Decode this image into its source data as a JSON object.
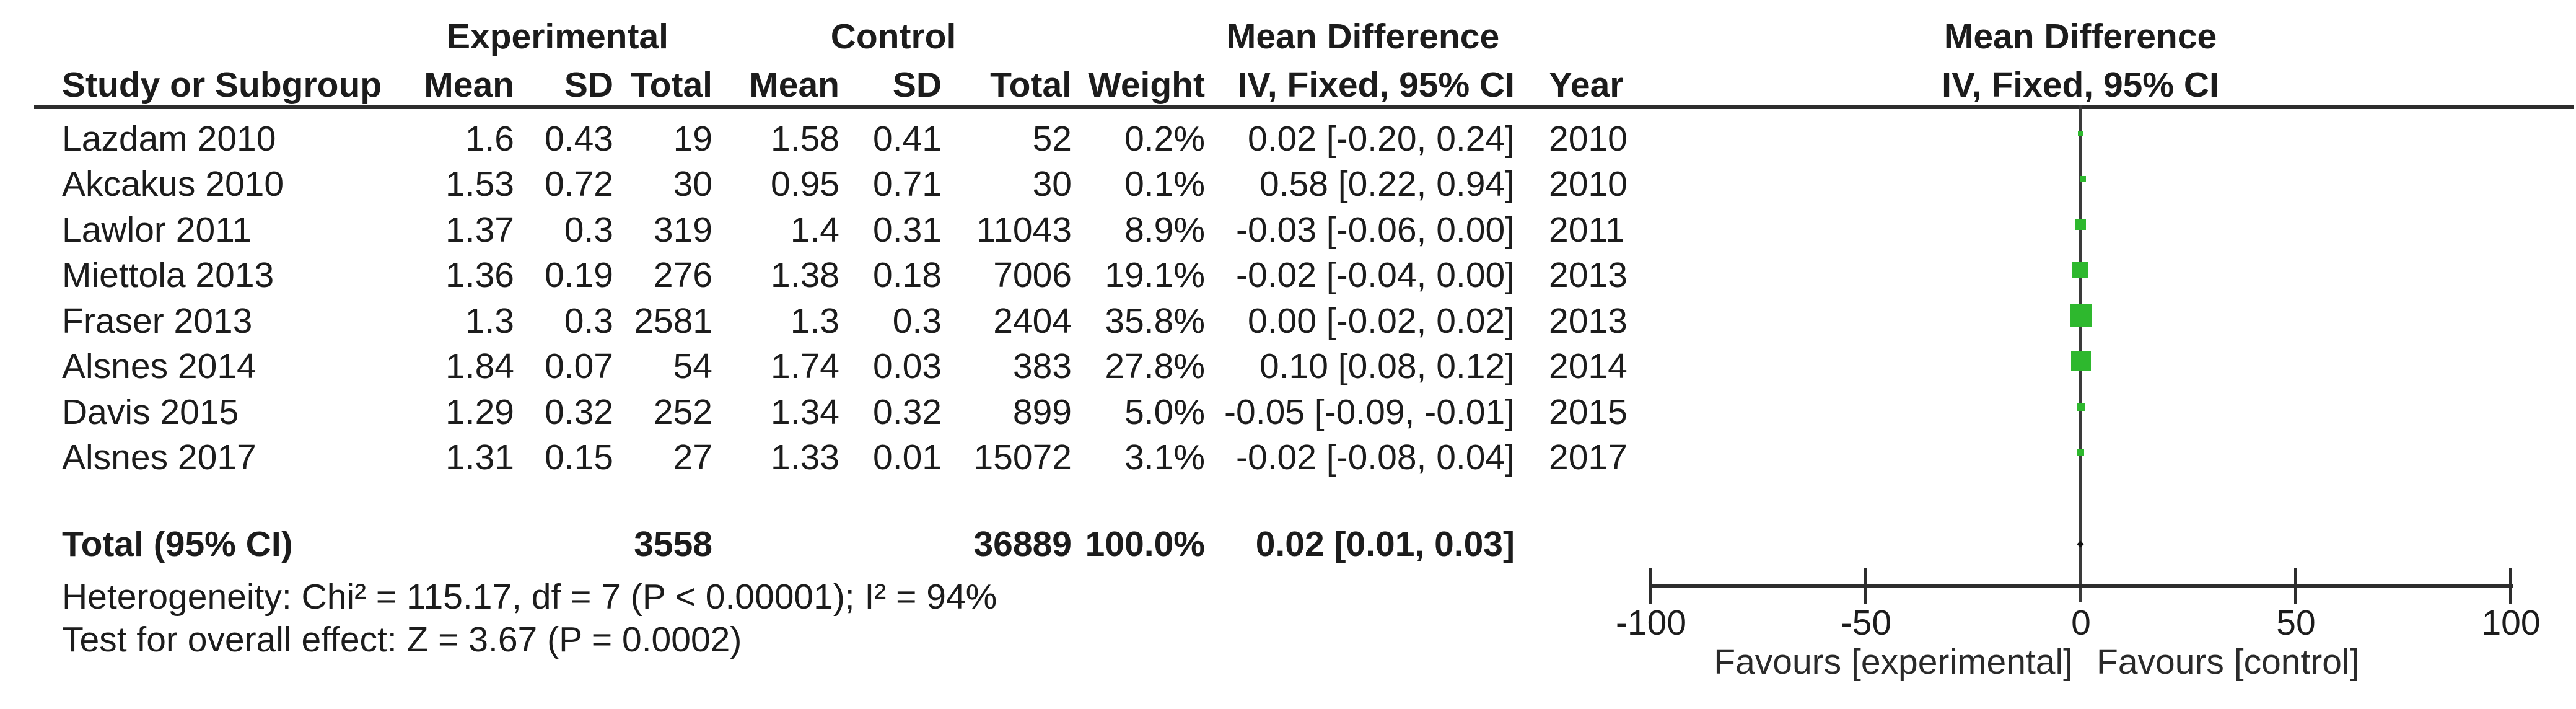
{
  "meta": {
    "background": "#ffffff",
    "text_color": "#1c1c1c",
    "marker_green": "#2eb82e",
    "line_color": "#2d2d2d"
  },
  "table": {
    "group_headers": {
      "experimental": "Experimental",
      "control": "Control",
      "mean_difference": "Mean Difference"
    },
    "columns": {
      "study": "Study or Subgroup",
      "mean": "Mean",
      "sd": "SD",
      "total": "Total",
      "weight": "Weight",
      "iv_fixed": "IV, Fixed, 95% CI",
      "year": "Year"
    },
    "rows": [
      {
        "study": "Lazdam 2010",
        "exp_mean": "1.6",
        "exp_sd": "0.43",
        "exp_total": "19",
        "ctrl_mean": "1.58",
        "ctrl_sd": "0.41",
        "ctrl_total": "52",
        "weight": "0.2%",
        "md_ci": "0.02 [-0.20, 0.24]",
        "year": "2010"
      },
      {
        "study": "Akcakus 2010",
        "exp_mean": "1.53",
        "exp_sd": "0.72",
        "exp_total": "30",
        "ctrl_mean": "0.95",
        "ctrl_sd": "0.71",
        "ctrl_total": "30",
        "weight": "0.1%",
        "md_ci": "0.58 [0.22, 0.94]",
        "year": "2010"
      },
      {
        "study": "Lawlor 2011",
        "exp_mean": "1.37",
        "exp_sd": "0.3",
        "exp_total": "319",
        "ctrl_mean": "1.4",
        "ctrl_sd": "0.31",
        "ctrl_total": "11043",
        "weight": "8.9%",
        "md_ci": "-0.03 [-0.06, 0.00]",
        "year": "2011"
      },
      {
        "study": "Miettola 2013",
        "exp_mean": "1.36",
        "exp_sd": "0.19",
        "exp_total": "276",
        "ctrl_mean": "1.38",
        "ctrl_sd": "0.18",
        "ctrl_total": "7006",
        "weight": "19.1%",
        "md_ci": "-0.02 [-0.04, 0.00]",
        "year": "2013"
      },
      {
        "study": "Fraser 2013",
        "exp_mean": "1.3",
        "exp_sd": "0.3",
        "exp_total": "2581",
        "ctrl_mean": "1.3",
        "ctrl_sd": "0.3",
        "ctrl_total": "2404",
        "weight": "35.8%",
        "md_ci": "0.00 [-0.02, 0.02]",
        "year": "2013"
      },
      {
        "study": "Alsnes 2014",
        "exp_mean": "1.84",
        "exp_sd": "0.07",
        "exp_total": "54",
        "ctrl_mean": "1.74",
        "ctrl_sd": "0.03",
        "ctrl_total": "383",
        "weight": "27.8%",
        "md_ci": "0.10 [0.08, 0.12]",
        "year": "2014"
      },
      {
        "study": "Davis 2015",
        "exp_mean": "1.29",
        "exp_sd": "0.32",
        "exp_total": "252",
        "ctrl_mean": "1.34",
        "ctrl_sd": "0.32",
        "ctrl_total": "899",
        "weight": "5.0%",
        "md_ci": "-0.05 [-0.09, -0.01]",
        "year": "2015"
      },
      {
        "study": "Alsnes 2017",
        "exp_mean": "1.31",
        "exp_sd": "0.15",
        "exp_total": "27",
        "ctrl_mean": "1.33",
        "ctrl_sd": "0.01",
        "ctrl_total": "15072",
        "weight": "3.1%",
        "md_ci": "-0.02 [-0.08, 0.04]",
        "year": "2017"
      }
    ],
    "total_row": {
      "study": "Total (95% CI)",
      "exp_total": "3558",
      "ctrl_total": "36889",
      "weight": "100.0%",
      "md_ci": "0.02 [0.01, 0.03]"
    },
    "heterogeneity": "Heterogeneity: Chi² = 115.17, df = 7 (P < 0.00001); I² = 94%",
    "overall_effect": "Test for overall effect: Z = 3.67 (P = 0.0002)"
  },
  "plot": {
    "header_line1": "Mean Difference",
    "header_line2": "IV, Fixed, 95% CI",
    "favours_left": "Favours [experimental]",
    "favours_right": "Favours [control]"
  },
  "chart_data": {
    "type": "scatter",
    "title": "Mean Difference — IV, Fixed, 95% CI",
    "xlim": [
      -100,
      100
    ],
    "x_ticks": [
      -100,
      -50,
      0,
      50,
      100
    ],
    "grid": false,
    "legend": "none",
    "marker_color": "#2eb82e",
    "axis_caption_left": "Favours [experimental]",
    "axis_caption_right": "Favours [control]",
    "points": [
      {
        "study": "Lazdam 2010",
        "year": 2010,
        "md": 0.02,
        "ci": [
          -0.2,
          0.24
        ],
        "weight_pct": 0.2
      },
      {
        "study": "Akcakus 2010",
        "year": 2010,
        "md": 0.58,
        "ci": [
          0.22,
          0.94
        ],
        "weight_pct": 0.1
      },
      {
        "study": "Lawlor 2011",
        "year": 2011,
        "md": -0.03,
        "ci": [
          -0.06,
          0.0
        ],
        "weight_pct": 8.9
      },
      {
        "study": "Miettola 2013",
        "year": 2013,
        "md": -0.02,
        "ci": [
          -0.04,
          0.0
        ],
        "weight_pct": 19.1
      },
      {
        "study": "Fraser 2013",
        "year": 2013,
        "md": 0.0,
        "ci": [
          -0.02,
          0.02
        ],
        "weight_pct": 35.8
      },
      {
        "study": "Alsnes 2014",
        "year": 2014,
        "md": 0.1,
        "ci": [
          0.08,
          0.12
        ],
        "weight_pct": 27.8
      },
      {
        "study": "Davis 2015",
        "year": 2015,
        "md": -0.05,
        "ci": [
          -0.09,
          -0.01
        ],
        "weight_pct": 5.0
      },
      {
        "study": "Alsnes 2017",
        "year": 2017,
        "md": -0.02,
        "ci": [
          -0.08,
          0.04
        ],
        "weight_pct": 3.1
      }
    ],
    "total": {
      "label": "Total (95% CI)",
      "md": 0.02,
      "ci": [
        0.01,
        0.03
      ],
      "weight_pct": 100.0
    }
  }
}
